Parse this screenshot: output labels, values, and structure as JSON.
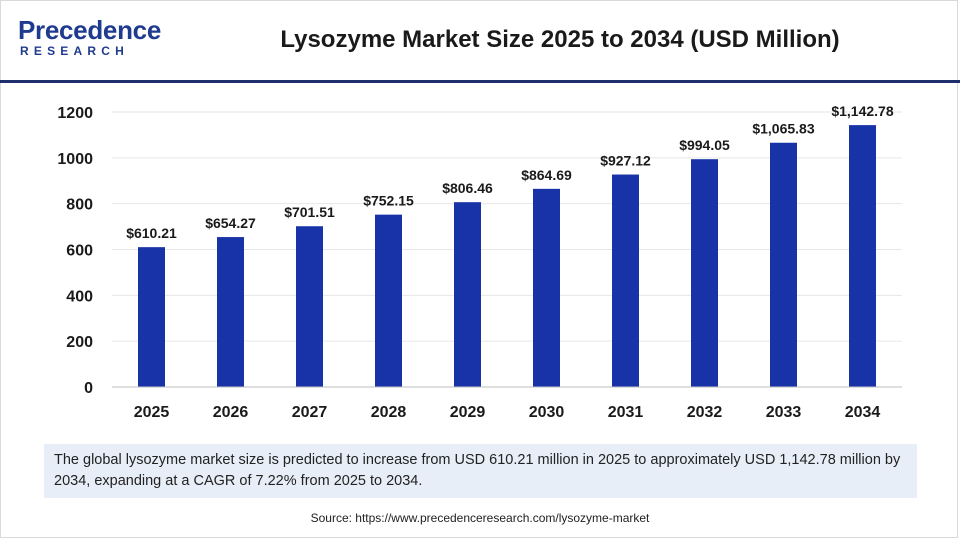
{
  "brand": {
    "name_main": "Precedence",
    "name_sub": "RESEARCH",
    "color": "#1f3b8f"
  },
  "header": {
    "title": "Lysozyme Market Size 2025 to 2034 (USD Million)"
  },
  "chart_data": {
    "type": "bar",
    "title": "Lysozyme Market Size 2025 to 2034 (USD Million)",
    "categories": [
      "2025",
      "2026",
      "2027",
      "2028",
      "2029",
      "2030",
      "2031",
      "2032",
      "2033",
      "2034"
    ],
    "values": [
      610.21,
      654.27,
      701.51,
      752.15,
      806.46,
      864.69,
      927.12,
      994.05,
      1065.83,
      1142.78
    ],
    "data_labels": [
      "$610.21",
      "$654.27",
      "$701.51",
      "$752.15",
      "$806.46",
      "$864.69",
      "$927.12",
      "$994.05",
      "$1,065.83",
      "$1,142.78"
    ],
    "y_ticks": [
      0,
      200,
      400,
      600,
      800,
      1000,
      1200
    ],
    "ylim": [
      0,
      1200
    ],
    "xlabel": "",
    "ylabel": "",
    "grid": true,
    "bar_color": "#1833a8",
    "grid_color": "#e6e6e6",
    "axis_color": "#bfbfbf"
  },
  "note": {
    "text": "The global lysozyme market size is predicted to increase from USD 610.21 million in 2025 to approximately USD 1,142.78 million by 2034, expanding at a CAGR of 7.22% from 2025 to 2034."
  },
  "source": {
    "text": "Source: https://www.precedenceresearch.com/lysozyme-market"
  }
}
